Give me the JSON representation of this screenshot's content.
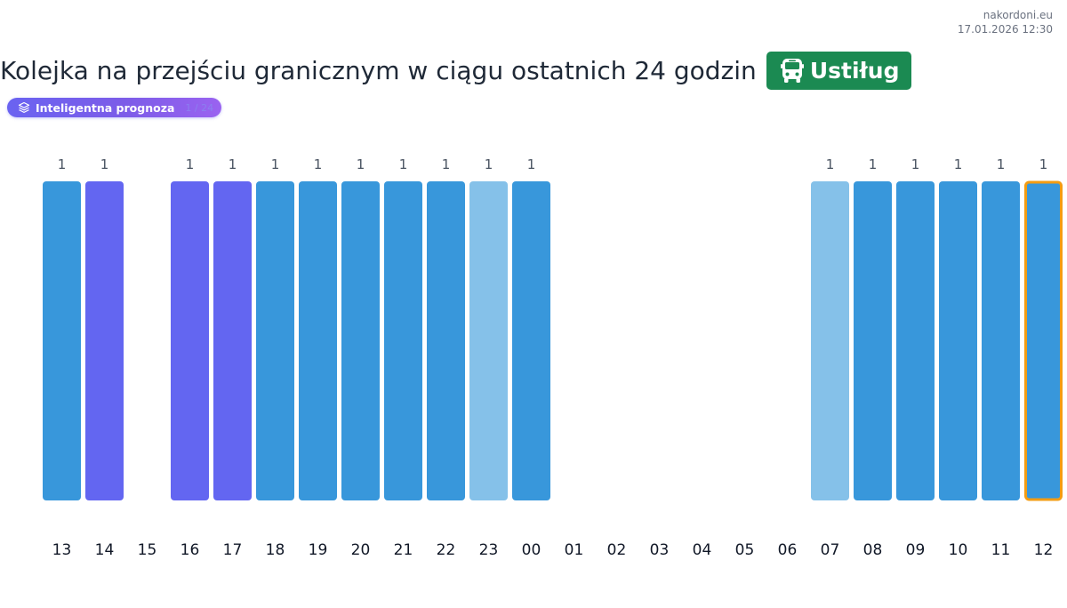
{
  "header": {
    "site": "nakordoni.eu",
    "timestamp": "17.01.2026 12:30"
  },
  "title": "Kolejka na przejściu granicznym w ciągu ostatnich 24 godzin",
  "crossing_badge": {
    "label": "Ustiług",
    "icon": "bus-icon",
    "color": "#1b8a52"
  },
  "forecast_pill": {
    "label": "Inteligentna prognoza",
    "icon": "layers-icon",
    "extra": "1 / 24"
  },
  "colors": {
    "observed": "#3897db",
    "forecast": "#6366f1",
    "estimated": "#85c1e9",
    "current_outline": "#f39c12"
  },
  "chart_data": {
    "type": "bar",
    "title": "",
    "xlabel": "",
    "ylabel": "",
    "categories": [
      "13",
      "14",
      "15",
      "16",
      "17",
      "18",
      "19",
      "20",
      "21",
      "22",
      "23",
      "00",
      "01",
      "02",
      "03",
      "04",
      "05",
      "06",
      "07",
      "08",
      "09",
      "10",
      "11",
      "12"
    ],
    "values": [
      1,
      1,
      null,
      1,
      1,
      1,
      1,
      1,
      1,
      1,
      1,
      1,
      null,
      null,
      null,
      null,
      null,
      null,
      1,
      1,
      1,
      1,
      1,
      1
    ],
    "bar_kind": [
      "observed",
      "forecast",
      null,
      "forecast",
      "forecast",
      "observed",
      "observed",
      "observed",
      "observed",
      "observed",
      "estimated",
      "observed",
      null,
      null,
      null,
      null,
      null,
      null,
      "estimated",
      "observed",
      "observed",
      "observed",
      "observed",
      "observed"
    ],
    "current_hour": "12",
    "ylim": [
      0,
      1
    ],
    "grid": false,
    "legend": "none"
  }
}
